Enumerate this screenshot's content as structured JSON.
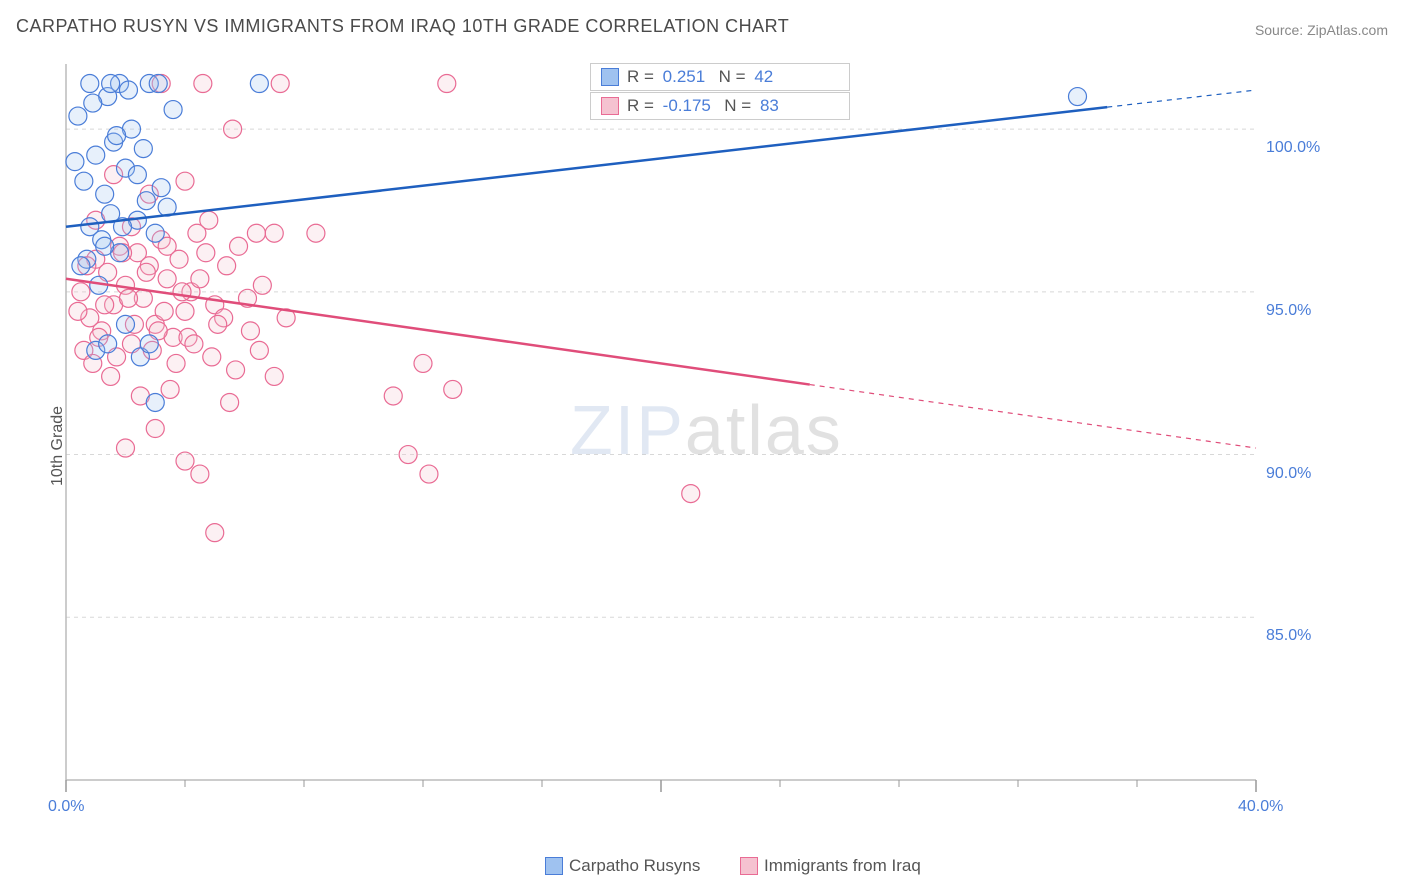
{
  "title": "CARPATHO RUSYN VS IMMIGRANTS FROM IRAQ 10TH GRADE CORRELATION CHART",
  "source_label": "Source: ZipAtlas.com",
  "y_axis_label": "10th Grade",
  "watermark_zip": "ZIP",
  "watermark_atlas": "atlas",
  "chart": {
    "type": "scatter",
    "background_color": "#ffffff",
    "grid_color": "#d8d8d8",
    "axis_color": "#bbbbbb",
    "tick_color": "#999999",
    "xlim": [
      0,
      40
    ],
    "ylim": [
      80,
      102
    ],
    "x_ticks": [
      0,
      20,
      40
    ],
    "x_tick_labels": [
      "0.0%",
      "",
      "40.0%"
    ],
    "x_minor_ticks": [
      4,
      8,
      12,
      16,
      24,
      28,
      32,
      36
    ],
    "y_ticks": [
      85,
      90,
      95,
      100
    ],
    "y_tick_labels": [
      "85.0%",
      "90.0%",
      "95.0%",
      "100.0%"
    ],
    "marker_radius": 9,
    "marker_stroke_width": 1.2,
    "marker_fill_opacity": 0.25,
    "line_width": 2.5,
    "series": [
      {
        "name": "Carpatho Rusyns",
        "color_fill": "#9fc2f0",
        "color_stroke": "#4a7dd8",
        "line_color": "#1e5fbf",
        "R": "0.251",
        "N": "42",
        "regression": {
          "x1": 0,
          "y1": 97.0,
          "x2": 40,
          "y2": 101.2,
          "extrapolate_from_x": 35
        },
        "points": [
          [
            0.4,
            100.4
          ],
          [
            0.6,
            98.4
          ],
          [
            0.8,
            97.0
          ],
          [
            1.0,
            99.2
          ],
          [
            1.2,
            96.6
          ],
          [
            1.3,
            98.0
          ],
          [
            1.4,
            101.0
          ],
          [
            1.5,
            97.4
          ],
          [
            1.6,
            99.6
          ],
          [
            1.8,
            96.2
          ],
          [
            2.0,
            98.8
          ],
          [
            2.2,
            100.0
          ],
          [
            2.4,
            97.2
          ],
          [
            2.6,
            99.4
          ],
          [
            2.8,
            101.4
          ],
          [
            3.0,
            96.8
          ],
          [
            3.2,
            98.2
          ],
          [
            3.4,
            97.6
          ],
          [
            3.6,
            100.6
          ],
          [
            1.0,
            93.2
          ],
          [
            1.4,
            93.4
          ],
          [
            2.0,
            94.0
          ],
          [
            2.5,
            93.0
          ],
          [
            3.0,
            91.6
          ],
          [
            1.8,
            101.4
          ],
          [
            0.7,
            96.0
          ],
          [
            1.1,
            95.2
          ],
          [
            1.5,
            101.4
          ],
          [
            6.5,
            101.4
          ],
          [
            2.8,
            93.4
          ],
          [
            0.5,
            95.8
          ],
          [
            0.9,
            100.8
          ],
          [
            1.3,
            96.4
          ],
          [
            1.7,
            99.8
          ],
          [
            2.1,
            101.2
          ],
          [
            2.4,
            98.6
          ],
          [
            2.7,
            97.8
          ],
          [
            3.1,
            101.4
          ],
          [
            0.3,
            99.0
          ],
          [
            0.8,
            101.4
          ],
          [
            34.0,
            101.0
          ],
          [
            1.9,
            97.0
          ]
        ]
      },
      {
        "name": "Immigrants from Iraq",
        "color_fill": "#f5c2d0",
        "color_stroke": "#e96b94",
        "line_color": "#e04d7a",
        "R": "-0.175",
        "N": "83",
        "regression": {
          "x1": 0,
          "y1": 95.4,
          "x2": 40,
          "y2": 90.2,
          "extrapolate_from_x": 25
        },
        "points": [
          [
            0.5,
            95.0
          ],
          [
            0.8,
            94.2
          ],
          [
            1.0,
            96.0
          ],
          [
            1.2,
            93.8
          ],
          [
            1.4,
            95.6
          ],
          [
            1.6,
            94.6
          ],
          [
            1.8,
            96.4
          ],
          [
            2.0,
            95.2
          ],
          [
            2.2,
            93.4
          ],
          [
            2.4,
            96.2
          ],
          [
            2.6,
            94.8
          ],
          [
            2.8,
            95.8
          ],
          [
            3.0,
            94.0
          ],
          [
            3.2,
            96.6
          ],
          [
            3.4,
            95.4
          ],
          [
            3.6,
            93.6
          ],
          [
            3.8,
            96.0
          ],
          [
            4.0,
            94.4
          ],
          [
            4.2,
            95.0
          ],
          [
            4.4,
            96.8
          ],
          [
            3.2,
            101.4
          ],
          [
            4.6,
            101.4
          ],
          [
            5.0,
            94.6
          ],
          [
            5.4,
            95.8
          ],
          [
            5.8,
            96.4
          ],
          [
            6.2,
            93.8
          ],
          [
            6.6,
            95.2
          ],
          [
            7.0,
            96.8
          ],
          [
            7.4,
            94.2
          ],
          [
            12.8,
            101.4
          ],
          [
            4.8,
            97.2
          ],
          [
            5.6,
            100.0
          ],
          [
            6.4,
            96.8
          ],
          [
            7.2,
            101.4
          ],
          [
            8.4,
            96.8
          ],
          [
            2.0,
            90.2
          ],
          [
            3.0,
            90.8
          ],
          [
            4.0,
            89.8
          ],
          [
            1.5,
            92.4
          ],
          [
            2.5,
            91.8
          ],
          [
            3.5,
            92.0
          ],
          [
            4.5,
            89.4
          ],
          [
            5.5,
            91.6
          ],
          [
            6.5,
            93.2
          ],
          [
            7.0,
            92.4
          ],
          [
            12.0,
            92.8
          ],
          [
            11.0,
            91.8
          ],
          [
            11.5,
            90.0
          ],
          [
            12.2,
            89.4
          ],
          [
            13.0,
            92.0
          ],
          [
            21.0,
            88.8
          ],
          [
            5.0,
            87.6
          ],
          [
            0.6,
            93.2
          ],
          [
            0.9,
            92.8
          ],
          [
            1.3,
            94.6
          ],
          [
            1.7,
            93.0
          ],
          [
            2.1,
            94.8
          ],
          [
            2.9,
            93.2
          ],
          [
            3.3,
            94.4
          ],
          [
            3.7,
            92.8
          ],
          [
            4.1,
            93.6
          ],
          [
            4.5,
            95.4
          ],
          [
            4.9,
            93.0
          ],
          [
            5.3,
            94.2
          ],
          [
            5.7,
            92.6
          ],
          [
            6.1,
            94.8
          ],
          [
            2.2,
            97.0
          ],
          [
            2.8,
            98.0
          ],
          [
            3.4,
            96.4
          ],
          [
            4.0,
            98.4
          ],
          [
            1.0,
            97.2
          ],
          [
            1.6,
            98.6
          ],
          [
            0.4,
            94.4
          ],
          [
            0.7,
            95.8
          ],
          [
            1.1,
            93.6
          ],
          [
            1.9,
            96.2
          ],
          [
            2.3,
            94.0
          ],
          [
            2.7,
            95.6
          ],
          [
            3.1,
            93.8
          ],
          [
            3.9,
            95.0
          ],
          [
            4.3,
            93.4
          ],
          [
            4.7,
            96.2
          ],
          [
            5.1,
            94.0
          ]
        ]
      }
    ]
  },
  "legend_bottom": [
    {
      "label": "Carpatho Rusyns",
      "fill": "#9fc2f0",
      "stroke": "#4a7dd8"
    },
    {
      "label": "Immigrants from Iraq",
      "fill": "#f5c2d0",
      "stroke": "#e96b94"
    }
  ]
}
